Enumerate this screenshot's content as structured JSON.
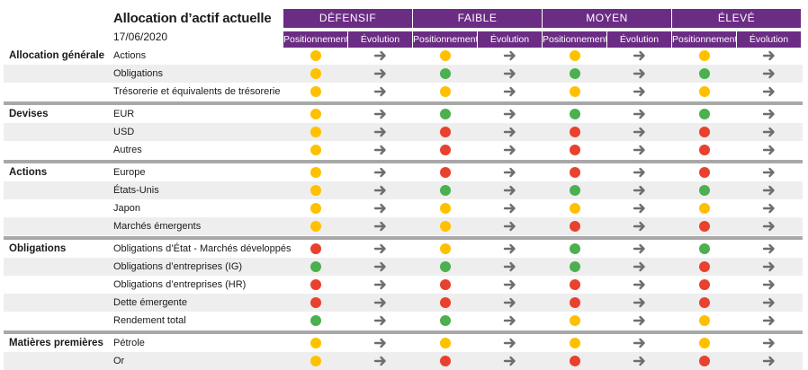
{
  "header": {
    "title": "Allocation d’actif actuelle",
    "date": "17/06/2020"
  },
  "profiles": [
    {
      "name": "DÉFENSIF",
      "col1": "Positionnement",
      "col2": "Évolution"
    },
    {
      "name": "FAIBLE",
      "col1": "Positionnement",
      "col2": "Évolution"
    },
    {
      "name": "MOYEN",
      "col1": "Positionnement",
      "col2": "Évolution"
    },
    {
      "name": "ÉLEVÉ",
      "col1": "Positionnement",
      "col2": "Évolution"
    }
  ],
  "colors": {
    "purple": "#6b2c84",
    "yellow": "#ffc000",
    "green": "#4caf50",
    "red": "#e8412e",
    "arrow": "#6e6e6e"
  },
  "arrow_icon": "arrow-right-icon",
  "groups": [
    {
      "label": "Allocation générale",
      "rows": [
        {
          "label": "Actions",
          "status": [
            "yellow",
            "yellow",
            "yellow",
            "yellow"
          ]
        },
        {
          "label": "Obligations",
          "status": [
            "yellow",
            "green",
            "green",
            "green"
          ]
        },
        {
          "label": "Trésorerie et équivalents de trésorerie",
          "status": [
            "yellow",
            "yellow",
            "yellow",
            "yellow"
          ]
        }
      ]
    },
    {
      "label": "Devises",
      "rows": [
        {
          "label": "EUR",
          "status": [
            "yellow",
            "green",
            "green",
            "green"
          ]
        },
        {
          "label": "USD",
          "status": [
            "yellow",
            "red",
            "red",
            "red"
          ]
        },
        {
          "label": "Autres",
          "status": [
            "yellow",
            "red",
            "red",
            "red"
          ]
        }
      ]
    },
    {
      "label": "Actions",
      "rows": [
        {
          "label": "Europe",
          "status": [
            "yellow",
            "red",
            "red",
            "red"
          ]
        },
        {
          "label": "États-Unis",
          "status": [
            "yellow",
            "green",
            "green",
            "green"
          ]
        },
        {
          "label": "Japon",
          "status": [
            "yellow",
            "yellow",
            "yellow",
            "yellow"
          ]
        },
        {
          "label": "Marchés émergents",
          "status": [
            "yellow",
            "yellow",
            "red",
            "red"
          ]
        }
      ]
    },
    {
      "label": "Obligations",
      "rows": [
        {
          "label": "Obligations d’État - Marchés développés",
          "status": [
            "red",
            "yellow",
            "green",
            "green"
          ]
        },
        {
          "label": "Obligations d’entreprises (IG)",
          "status": [
            "green",
            "green",
            "green",
            "red"
          ]
        },
        {
          "label": "Obligations d’entreprises (HR)",
          "status": [
            "red",
            "red",
            "red",
            "red"
          ]
        },
        {
          "label": "Dette émergente",
          "status": [
            "red",
            "red",
            "red",
            "red"
          ]
        },
        {
          "label": "Rendement total",
          "status": [
            "green",
            "green",
            "yellow",
            "yellow"
          ]
        }
      ]
    },
    {
      "label": "Matières premières",
      "rows": [
        {
          "label": "Pétrole",
          "status": [
            "yellow",
            "yellow",
            "yellow",
            "yellow"
          ]
        },
        {
          "label": "Or",
          "status": [
            "yellow",
            "red",
            "red",
            "red"
          ]
        }
      ]
    }
  ]
}
